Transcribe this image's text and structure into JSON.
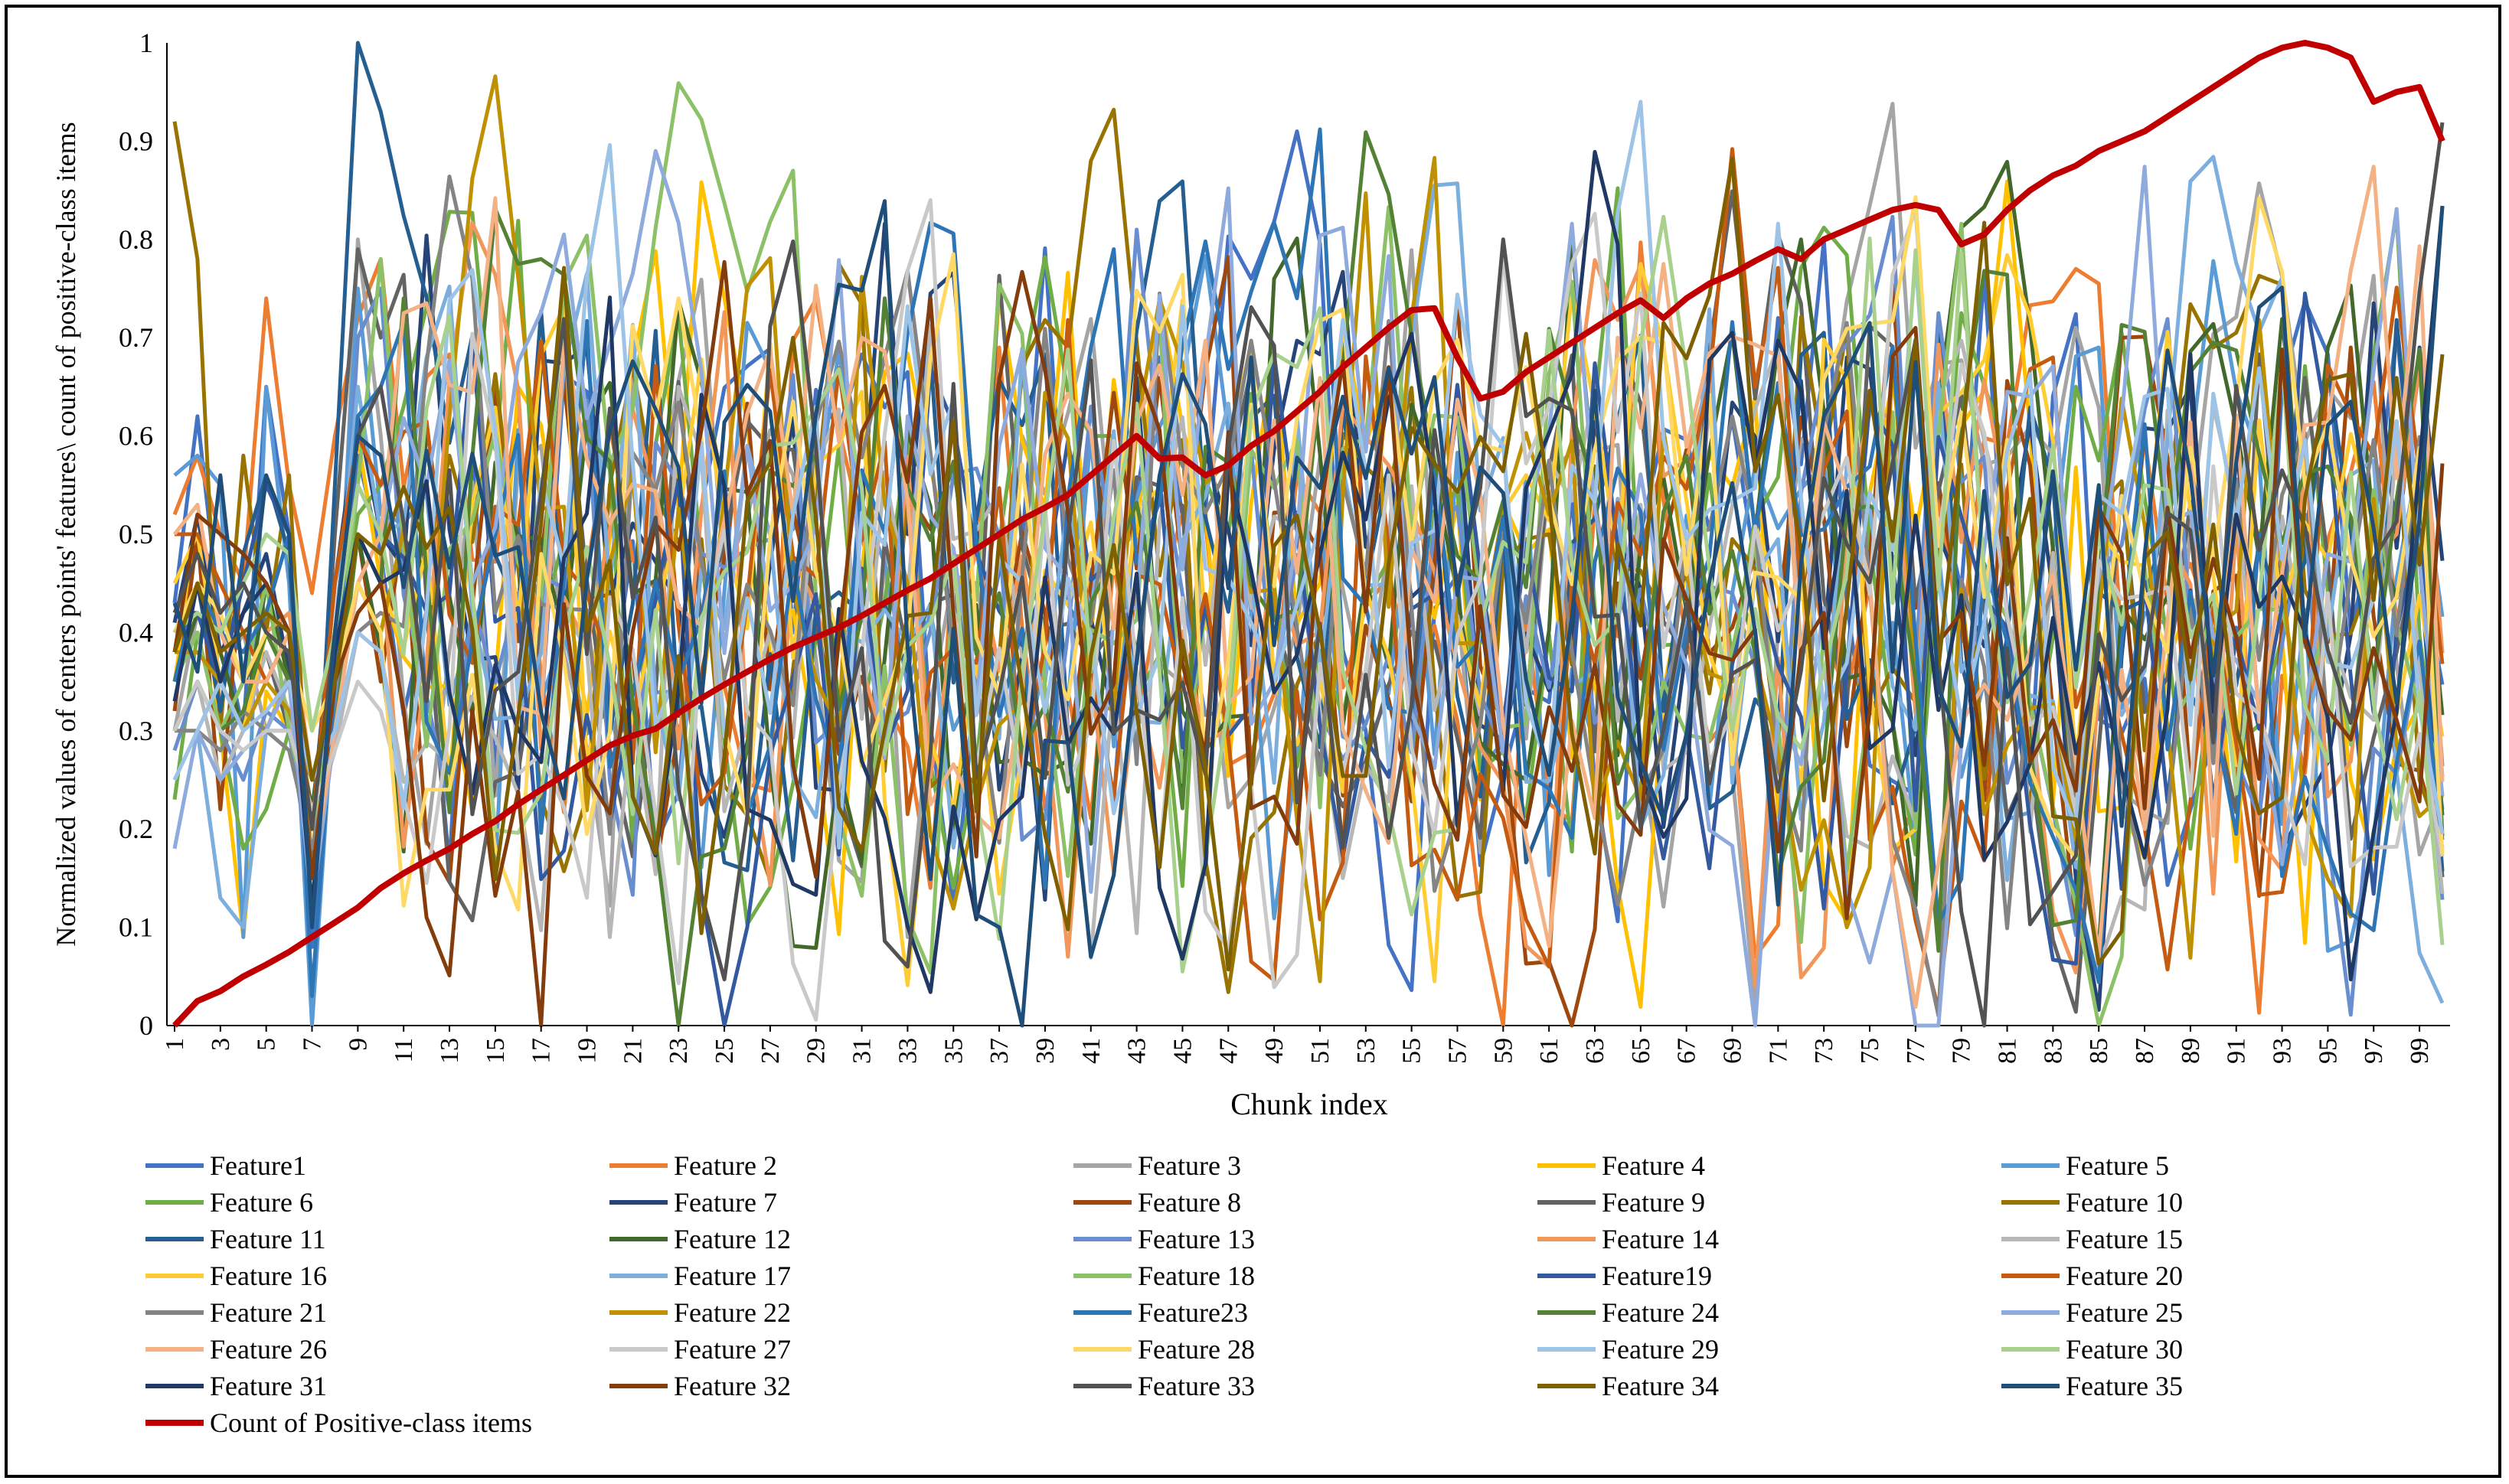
{
  "chart_data": {
    "type": "line",
    "title": "",
    "xlabel": "Chunk index",
    "ylabel": "Normalized values of centers points' features\\ count of positive-class items",
    "ylim": [
      0,
      1
    ],
    "yticks": [
      0,
      0.1,
      0.2,
      0.3,
      0.4,
      0.5,
      0.6,
      0.7,
      0.8,
      0.9,
      1
    ],
    "ytick_labels": [
      "0",
      "0.1",
      "0.2",
      "0.3",
      "0.4",
      "0.5",
      "0.6",
      "0.7",
      "0.8",
      "0.9",
      "1"
    ],
    "x_count": 100,
    "xtick_labels": [
      "1",
      "3",
      "5",
      "7",
      "9",
      "11",
      "13",
      "15",
      "17",
      "19",
      "21",
      "23",
      "25",
      "27",
      "29",
      "31",
      "33",
      "35",
      "37",
      "39",
      "41",
      "43",
      "45",
      "47",
      "49",
      "51",
      "53",
      "55",
      "57",
      "59",
      "61",
      "63",
      "65",
      "67",
      "69",
      "71",
      "73",
      "75",
      "77",
      "79",
      "81",
      "83",
      "85",
      "87",
      "89",
      "91",
      "93",
      "95",
      "97",
      "99"
    ],
    "grid": false,
    "legend_position": "bottom",
    "series": [
      {
        "name": "Feature1",
        "color": "#4472C4",
        "values": [
          0.43,
          0.62,
          0.41,
          0.3,
          0.65,
          0.5,
          0.08,
          0.33,
          0.58,
          0.48
        ]
      },
      {
        "name": "Feature 2",
        "color": "#ED7D31",
        "values": [
          0.52,
          0.58,
          0.5,
          0.45,
          0.74,
          0.55,
          0.44,
          0.6,
          0.72,
          0.78
        ]
      },
      {
        "name": "Feature 3",
        "color": "#A5A5A5",
        "values": [
          0.3,
          0.42,
          0.35,
          0.4,
          0.3,
          0.36,
          0.2,
          0.3,
          0.8,
          0.6
        ]
      },
      {
        "name": "Feature 4",
        "color": "#FFC000",
        "values": [
          0.35,
          0.5,
          0.3,
          0.09,
          0.34,
          0.3,
          0.17,
          0.4,
          0.6,
          0.45
        ]
      },
      {
        "name": "Feature 5",
        "color": "#5B9BD5",
        "values": [
          0.56,
          0.58,
          0.55,
          0.09,
          0.65,
          0.45,
          0.0,
          0.35,
          0.75,
          0.52
        ]
      },
      {
        "name": "Feature 6",
        "color": "#70AD47",
        "values": [
          0.23,
          0.4,
          0.3,
          0.18,
          0.22,
          0.3,
          0.2,
          0.38,
          0.52,
          0.55
        ]
      },
      {
        "name": "Feature 7",
        "color": "#264478",
        "values": [
          0.41,
          0.52,
          0.38,
          0.42,
          0.48,
          0.36,
          0.21,
          0.45,
          0.62,
          0.5
        ]
      },
      {
        "name": "Feature 8",
        "color": "#9E480E",
        "values": [
          0.32,
          0.5,
          0.22,
          0.48,
          0.45,
          0.4,
          0.12,
          0.3,
          0.5,
          0.35
        ]
      },
      {
        "name": "Feature 9",
        "color": "#636363",
        "values": [
          0.38,
          0.45,
          0.4,
          0.35,
          0.38,
          0.3,
          0.15,
          0.5,
          0.79,
          0.7
        ]
      },
      {
        "name": "Feature 10",
        "color": "#997300",
        "values": [
          0.92,
          0.78,
          0.3,
          0.58,
          0.4,
          0.56,
          0.15,
          0.35,
          0.45,
          0.4
        ]
      },
      {
        "name": "Feature 11",
        "color": "#255E91",
        "values": [
          0.4,
          0.45,
          0.32,
          0.48,
          0.56,
          0.48,
          0.1,
          0.55,
          1.0,
          0.93
        ]
      },
      {
        "name": "Feature 12",
        "color": "#43682B",
        "values": [
          0.35,
          0.42,
          0.38,
          0.3,
          0.45,
          0.35,
          0.22,
          0.4,
          0.5,
          0.38
        ]
      },
      {
        "name": "Feature 13",
        "color": "#698ED0",
        "values": [
          0.28,
          0.35,
          0.3,
          0.25,
          0.32,
          0.3,
          0.15,
          0.3,
          0.7,
          0.75
        ]
      },
      {
        "name": "Feature 14",
        "color": "#F1975A",
        "values": [
          0.4,
          0.45,
          0.35,
          0.3,
          0.4,
          0.42,
          0.25,
          0.3,
          0.5,
          0.48
        ]
      },
      {
        "name": "Feature 15",
        "color": "#B7B7B7",
        "values": [
          0.3,
          0.35,
          0.25,
          0.3,
          0.38,
          0.32,
          0.2,
          0.28,
          0.4,
          0.38
        ]
      },
      {
        "name": "Feature 16",
        "color": "#FFCD33",
        "values": [
          0.45,
          0.5,
          0.35,
          0.3,
          0.4,
          0.35,
          0.2,
          0.35,
          0.5,
          0.45
        ]
      },
      {
        "name": "Feature 17",
        "color": "#7CAFDD",
        "values": [
          0.25,
          0.3,
          0.13,
          0.1,
          0.3,
          0.3,
          0.2,
          0.4,
          0.65,
          0.5
        ]
      },
      {
        "name": "Feature 18",
        "color": "#8CC168",
        "values": [
          0.35,
          0.4,
          0.3,
          0.35,
          0.45,
          0.3,
          0.2,
          0.35,
          0.55,
          0.78
        ]
      },
      {
        "name": "Feature19",
        "color": "#335AA1",
        "values": [
          0.42,
          0.42,
          0.35,
          0.45,
          0.55,
          0.5,
          0.1,
          0.4,
          0.55,
          0.5
        ]
      },
      {
        "name": "Feature 20",
        "color": "#C55A11",
        "values": [
          0.5,
          0.5,
          0.45,
          0.4,
          0.35,
          0.4,
          0.2,
          0.45,
          0.6,
          0.55
        ]
      },
      {
        "name": "Feature 21",
        "color": "#848484",
        "values": [
          0.3,
          0.3,
          0.28,
          0.32,
          0.3,
          0.28,
          0.18,
          0.3,
          0.4,
          0.42
        ]
      },
      {
        "name": "Feature 22",
        "color": "#BF9000",
        "values": [
          0.38,
          0.38,
          0.35,
          0.3,
          0.35,
          0.32,
          0.25,
          0.3,
          0.45,
          0.4
        ]
      },
      {
        "name": "Feature23",
        "color": "#2E75B6",
        "values": [
          0.35,
          0.45,
          0.4,
          0.38,
          0.42,
          0.5,
          0.03,
          0.35,
          0.62,
          0.65
        ]
      },
      {
        "name": "Feature 24",
        "color": "#548235",
        "values": [
          0.3,
          0.35,
          0.3,
          0.32,
          0.4,
          0.35,
          0.15,
          0.3,
          0.5,
          0.45
        ]
      },
      {
        "name": "Feature 25",
        "color": "#8FAADC",
        "values": [
          0.18,
          0.3,
          0.25,
          0.28,
          0.3,
          0.35,
          0.12,
          0.3,
          0.45,
          0.5
        ]
      },
      {
        "name": "Feature 26",
        "color": "#F4B183",
        "values": [
          0.5,
          0.53,
          0.4,
          0.35,
          0.35,
          0.4,
          0.15,
          0.3,
          0.45,
          0.5
        ]
      },
      {
        "name": "Feature 27",
        "color": "#C9C9C9",
        "values": [
          0.3,
          0.35,
          0.3,
          0.28,
          0.3,
          0.3,
          0.22,
          0.28,
          0.35,
          0.32
        ]
      },
      {
        "name": "Feature 28",
        "color": "#FFD966",
        "values": [
          0.4,
          0.45,
          0.42,
          0.35,
          0.4,
          0.38,
          0.3,
          0.35,
          0.45,
          0.4
        ]
      },
      {
        "name": "Feature 29",
        "color": "#9DC3E6",
        "values": [
          0.25,
          0.3,
          0.35,
          0.3,
          0.32,
          0.35,
          0.25,
          0.3,
          0.4,
          0.38
        ]
      },
      {
        "name": "Feature 30",
        "color": "#A9D18E",
        "values": [
          0.4,
          0.42,
          0.4,
          0.45,
          0.5,
          0.48,
          0.3,
          0.4,
          0.55,
          0.5
        ]
      },
      {
        "name": "Feature 31",
        "color": "#203864",
        "values": [
          0.33,
          0.45,
          0.35,
          0.42,
          0.45,
          0.4,
          0.12,
          0.38,
          0.5,
          0.45
        ]
      },
      {
        "name": "Feature 32",
        "color": "#843C0C",
        "values": [
          0.38,
          0.52,
          0.5,
          0.48,
          0.45,
          0.4,
          0.15,
          0.35,
          0.42,
          0.45
        ]
      },
      {
        "name": "Feature 33",
        "color": "#525252",
        "values": [
          0.42,
          0.48,
          0.42,
          0.45,
          0.4,
          0.38,
          0.2,
          0.4,
          0.6,
          0.65
        ]
      },
      {
        "name": "Feature 34",
        "color": "#7F6000",
        "values": [
          0.38,
          0.45,
          0.38,
          0.4,
          0.42,
          0.4,
          0.25,
          0.35,
          0.5,
          0.48
        ]
      },
      {
        "name": "Feature 35",
        "color": "#1F4E79",
        "values": [
          0.43,
          0.36,
          0.56,
          0.35,
          0.56,
          0.5,
          0.1,
          0.4,
          0.6,
          0.58
        ]
      },
      {
        "name": "Count of Positive-class items",
        "color": "#C00000",
        "values": [
          0.0,
          0.025,
          0.035,
          0.05,
          0.062,
          0.075,
          0.09,
          0.105,
          0.12,
          0.14,
          0.155,
          0.168,
          0.18,
          0.195,
          0.208,
          0.225,
          0.24,
          0.255,
          0.27,
          0.285,
          0.295,
          0.302,
          0.318,
          0.333,
          0.347,
          0.36,
          0.373,
          0.385,
          0.395,
          0.405,
          0.417,
          0.43,
          0.443,
          0.455,
          0.47,
          0.485,
          0.5,
          0.515,
          0.527,
          0.54,
          0.56,
          0.58,
          0.6,
          0.577,
          0.578,
          0.56,
          0.57,
          0.59,
          0.605,
          0.625,
          0.645,
          0.67,
          0.69,
          0.71,
          0.728,
          0.73,
          0.68,
          0.638,
          0.645,
          0.665,
          0.68,
          0.695,
          0.71,
          0.725,
          0.738,
          0.72,
          0.74,
          0.755,
          0.765,
          0.778,
          0.79,
          0.78,
          0.8,
          0.81,
          0.82,
          0.83,
          0.835,
          0.83,
          0.795,
          0.805,
          0.83,
          0.85,
          0.865,
          0.875,
          0.89,
          0.9,
          0.91,
          0.925,
          0.94,
          0.955,
          0.97,
          0.985,
          0.995,
          1.0,
          0.995,
          0.985,
          0.94,
          0.95,
          0.955,
          0.9
        ]
      }
    ]
  }
}
